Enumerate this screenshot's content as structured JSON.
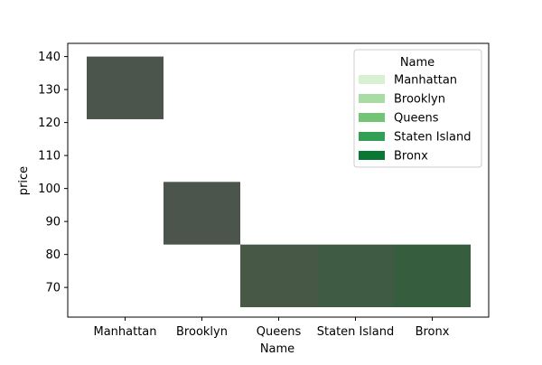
{
  "chart_data": {
    "type": "heatmap",
    "title": "",
    "xlabel": "Name",
    "ylabel": "price",
    "ylim": [
      61,
      144
    ],
    "yticks": [
      70,
      80,
      90,
      100,
      110,
      120,
      130,
      140
    ],
    "categories": [
      "Manhattan",
      "Brooklyn",
      "Queens",
      "Staten Island",
      "Bronx"
    ],
    "cells": [
      {
        "category": "Manhattan",
        "y_low": 121,
        "y_high": 140,
        "color": "#4b554c"
      },
      {
        "category": "Brooklyn",
        "y_low": 83,
        "y_high": 102,
        "color": "#4b554c"
      },
      {
        "category": "Queens",
        "y_low": 64,
        "y_high": 83,
        "color": "#475847"
      },
      {
        "category": "Staten Island",
        "y_low": 64,
        "y_high": 83,
        "color": "#3f5b43"
      },
      {
        "category": "Bronx",
        "y_low": 64,
        "y_high": 83,
        "color": "#375d3f"
      }
    ],
    "legend": {
      "title": "Name",
      "position": "top-right",
      "entries": [
        {
          "label": "Manhattan",
          "color": "#d8f0d2"
        },
        {
          "label": "Brooklyn",
          "color": "#a9dca3"
        },
        {
          "label": "Queens",
          "color": "#73c476"
        },
        {
          "label": "Staten Island",
          "color": "#339f55"
        },
        {
          "label": "Bronx",
          "color": "#0a7734"
        }
      ]
    }
  }
}
